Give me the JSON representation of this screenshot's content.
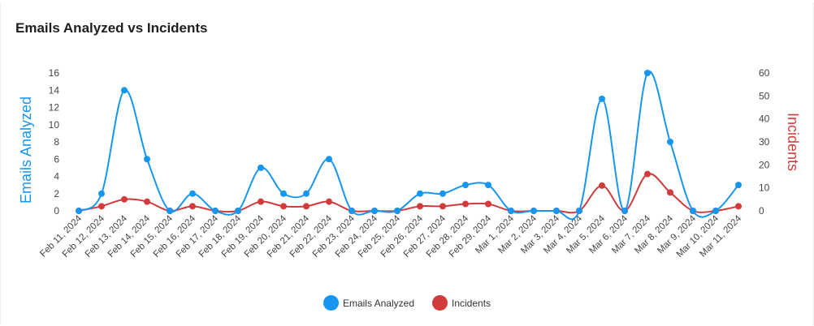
{
  "card": {
    "title": "Emails Analyzed vs Incidents"
  },
  "colors": {
    "emails": "#1796f0",
    "incidents": "#d23b3b"
  },
  "chart_data": {
    "type": "line",
    "title": "Emails Analyzed vs Incidents",
    "categories": [
      "Feb 11, 2024",
      "Feb 12, 2024",
      "Feb 13, 2024",
      "Feb 14, 2024",
      "Feb 15, 2024",
      "Feb 16, 2024",
      "Feb 17, 2024",
      "Feb 18, 2024",
      "Feb 19, 2024",
      "Feb 20, 2024",
      "Feb 21, 2024",
      "Feb 22, 2024",
      "Feb 23, 2024",
      "Feb 24, 2024",
      "Feb 25, 2024",
      "Feb 26, 2024",
      "Feb 27, 2024",
      "Feb 28, 2024",
      "Feb 29, 2024",
      "Mar 1, 2024",
      "Mar 2, 2024",
      "Mar 3, 2024",
      "Mar 4, 2024",
      "Mar 5, 2024",
      "Mar 6, 2024",
      "Mar 7, 2024",
      "Mar 8, 2024",
      "Mar 9, 2024",
      "Mar 10, 2024",
      "Mar 11, 2024"
    ],
    "series": [
      {
        "name": "Emails Analyzed",
        "axis": "left",
        "color": "#1796f0",
        "values": [
          0,
          2,
          14,
          6,
          0,
          2,
          0,
          0,
          5,
          2,
          2,
          6,
          0,
          0,
          0,
          2,
          2,
          3,
          3,
          0,
          0,
          0,
          0,
          13,
          0,
          16,
          8,
          0,
          0,
          3
        ]
      },
      {
        "name": "Incidents",
        "axis": "right",
        "color": "#d23b3b",
        "values": [
          0,
          2,
          5,
          4,
          0,
          2,
          0,
          0,
          4,
          2,
          2,
          4,
          0,
          0,
          0,
          2,
          2,
          3,
          3,
          0,
          0,
          0,
          0,
          11,
          0,
          16,
          8,
          0,
          0,
          2
        ]
      }
    ],
    "ylabel": "Emails Analyzed",
    "y2label": "Incidents",
    "ylim": [
      0,
      16
    ],
    "y2lim": [
      0,
      60
    ],
    "yticks": [
      0,
      2,
      4,
      6,
      8,
      10,
      12,
      14,
      16
    ],
    "y2ticks": [
      0,
      10,
      20,
      30,
      40,
      50,
      60
    ],
    "grid": false,
    "legend": "bottom-center"
  }
}
